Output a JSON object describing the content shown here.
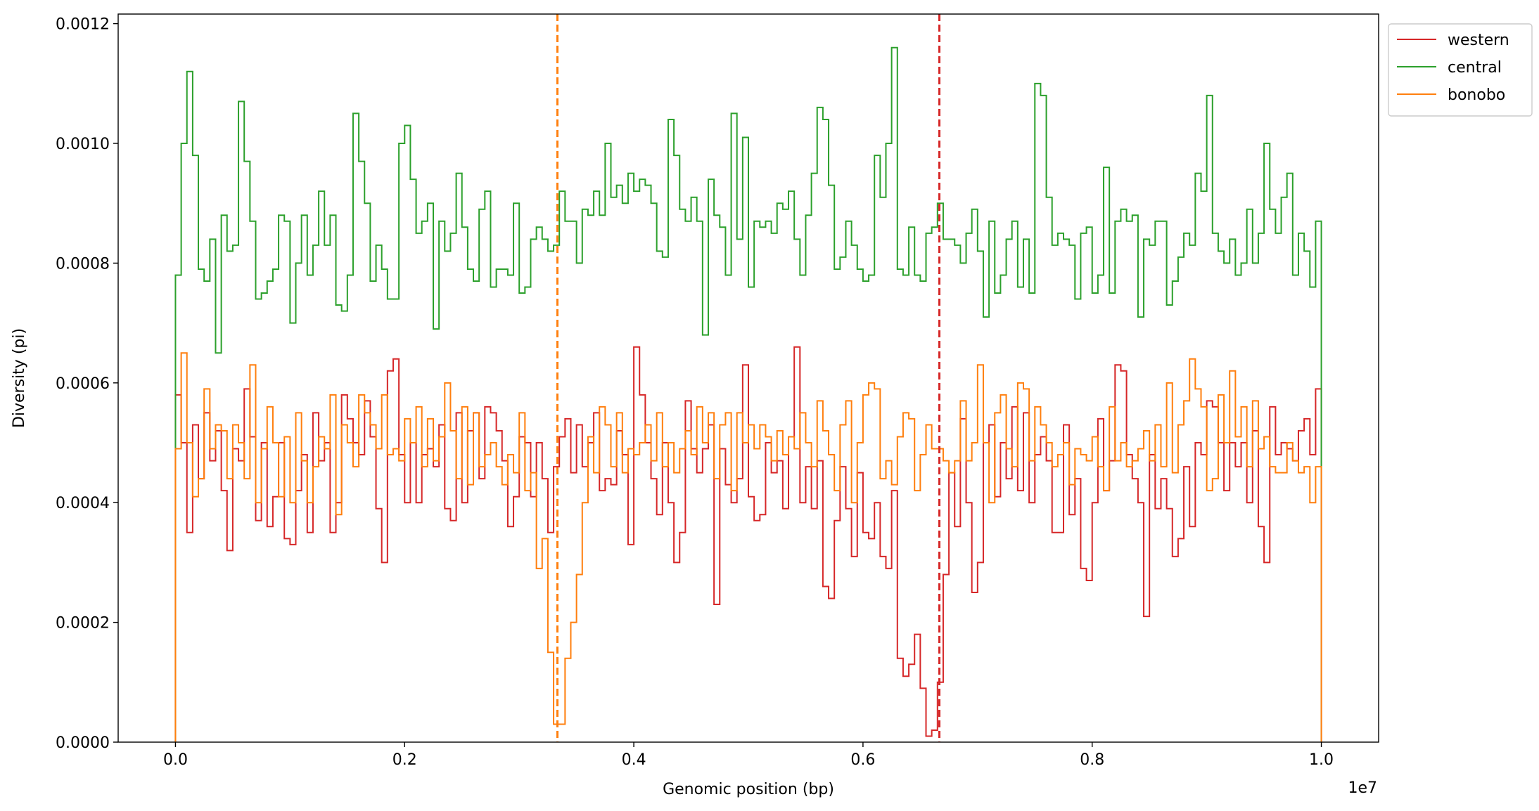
{
  "chart_data": {
    "type": "step-histogram",
    "xlabel": "Genomic position (bp)",
    "ylabel": "Diversity (pi)",
    "x_offset_label": "1e7",
    "xlim": [
      -500000,
      10500000
    ],
    "ylim": [
      0,
      0.001216
    ],
    "xticks": [
      {
        "value": 0,
        "label": "0.0"
      },
      {
        "value": 2000000,
        "label": "0.2"
      },
      {
        "value": 4000000,
        "label": "0.4"
      },
      {
        "value": 6000000,
        "label": "0.6"
      },
      {
        "value": 8000000,
        "label": "0.8"
      },
      {
        "value": 10000000,
        "label": "1.0"
      }
    ],
    "yticks": [
      {
        "value": 0,
        "label": "0.0000"
      },
      {
        "value": 0.0002,
        "label": "0.0002"
      },
      {
        "value": 0.0004,
        "label": "0.0004"
      },
      {
        "value": 0.0006,
        "label": "0.0006"
      },
      {
        "value": 0.0008,
        "label": "0.0008"
      },
      {
        "value": 0.001,
        "label": "0.0010"
      },
      {
        "value": 0.0012,
        "label": "0.0012"
      }
    ],
    "legend": "upper right outside",
    "vlines": [
      {
        "x": 3333333,
        "color": "#ff7f0e"
      },
      {
        "x": 6666667,
        "color": "#d62728"
      }
    ],
    "bins": [
      0,
      50000,
      100000,
      150000,
      200000,
      250000,
      300000,
      350000,
      400000,
      450000,
      500000,
      550000,
      600000,
      650000,
      700000,
      750000,
      800000,
      850000,
      900000,
      950000,
      1000000,
      1050000,
      1100000,
      1150000,
      1200000,
      1250000,
      1300000,
      1350000,
      1400000,
      1450000,
      1500000,
      1550000,
      1600000,
      1650000,
      1700000,
      1750000,
      1800000,
      1850000,
      1900000,
      1950000,
      2000000,
      2050000,
      2100000,
      2150000,
      2200000,
      2250000,
      2300000,
      2350000,
      2400000,
      2450000,
      2500000,
      2550000,
      2600000,
      2650000,
      2700000,
      2750000,
      2800000,
      2850000,
      2900000,
      2950000,
      3000000,
      3050000,
      3100000,
      3150000,
      3200000,
      3250000,
      3300000,
      3350000,
      3400000,
      3450000,
      3500000,
      3550000,
      3600000,
      3650000,
      3700000,
      3750000,
      3800000,
      3850000,
      3900000,
      3950000,
      4000000,
      4050000,
      4100000,
      4150000,
      4200000,
      4250000,
      4300000,
      4350000,
      4400000,
      4450000,
      4500000,
      4550000,
      4600000,
      4650000,
      4700000,
      4750000,
      4800000,
      4850000,
      4900000,
      4950000,
      5000000,
      5050000,
      5100000,
      5150000,
      5200000,
      5250000,
      5300000,
      5350000,
      5400000,
      5450000,
      5500000,
      5550000,
      5600000,
      5650000,
      5700000,
      5750000,
      5800000,
      5850000,
      5900000,
      5950000,
      6000000,
      6050000,
      6100000,
      6150000,
      6200000,
      6250000,
      6300000,
      6350000,
      6400000,
      6450000,
      6500000,
      6550000,
      6600000,
      6650000,
      6700000,
      6750000,
      6800000,
      6850000,
      6900000,
      6950000,
      7000000,
      7050000,
      7100000,
      7150000,
      7200000,
      7250000,
      7300000,
      7350000,
      7400000,
      7450000,
      7500000,
      7550000,
      7600000,
      7650000,
      7700000,
      7750000,
      7800000,
      7850000,
      7900000,
      7950000,
      8000000,
      8050000,
      8100000,
      8150000,
      8200000,
      8250000,
      8300000,
      8350000,
      8400000,
      8450000,
      8500000,
      8550000,
      8600000,
      8650000,
      8700000,
      8750000,
      8800000,
      8850000,
      8900000,
      8950000,
      9000000,
      9050000,
      9100000,
      9150000,
      9200000,
      9250000,
      9300000,
      9350000,
      9400000,
      9450000,
      9500000,
      9550000,
      9600000,
      9650000,
      9700000,
      9750000,
      9800000,
      9850000,
      9900000,
      9950000,
      10000000
    ],
    "series": [
      {
        "name": "western",
        "color": "#d62728",
        "values": [
          0.00058,
          0.0005,
          0.00035,
          0.00053,
          0.00044,
          0.00055,
          0.00047,
          0.00052,
          0.00042,
          0.00032,
          0.00049,
          0.00047,
          0.00059,
          0.00051,
          0.00037,
          0.0005,
          0.00036,
          0.00041,
          0.0005,
          0.00034,
          0.00033,
          0.00042,
          0.00048,
          0.00035,
          0.00055,
          0.00047,
          0.0005,
          0.00035,
          0.0004,
          0.00058,
          0.00054,
          0.0005,
          0.00048,
          0.00057,
          0.00051,
          0.00039,
          0.0003,
          0.00062,
          0.00064,
          0.00048,
          0.0004,
          0.0005,
          0.0004,
          0.00048,
          0.00049,
          0.00046,
          0.00053,
          0.00039,
          0.00037,
          0.00055,
          0.0004,
          0.00052,
          0.00055,
          0.00044,
          0.00056,
          0.00055,
          0.00052,
          0.00047,
          0.00036,
          0.00041,
          0.00051,
          0.0005,
          0.00041,
          0.0005,
          0.00044,
          0.00035,
          0.00046,
          0.00051,
          0.00054,
          0.00045,
          0.00053,
          0.00046,
          0.0005,
          0.00055,
          0.00042,
          0.00044,
          0.00043,
          0.00052,
          0.00048,
          0.00033,
          0.00066,
          0.00058,
          0.0005,
          0.00044,
          0.00038,
          0.0005,
          0.0004,
          0.0003,
          0.00035,
          0.00057,
          0.00049,
          0.00045,
          0.00049,
          0.00053,
          0.00023,
          0.00049,
          0.00043,
          0.0004,
          0.00044,
          0.00063,
          0.00041,
          0.00037,
          0.00038,
          0.0005,
          0.00045,
          0.00047,
          0.00039,
          0.00051,
          0.00066,
          0.0004,
          0.00046,
          0.00039,
          0.00047,
          0.00026,
          0.00024,
          0.00037,
          0.00046,
          0.00039,
          0.00031,
          0.00045,
          0.00035,
          0.00034,
          0.0004,
          0.00031,
          0.00029,
          0.00042,
          0.00014,
          0.00011,
          0.00013,
          0.00018,
          9e-05,
          1e-05,
          2e-05,
          0.0001,
          0.00028,
          0.00045,
          0.00036,
          0.00054,
          0.0004,
          0.00025,
          0.0003,
          0.0005,
          0.00053,
          0.00041,
          0.0005,
          0.00044,
          0.00056,
          0.00042,
          0.00055,
          0.0004,
          0.00048,
          0.00051,
          0.00047,
          0.00035,
          0.00035,
          0.00053,
          0.00038,
          0.00044,
          0.00029,
          0.00027,
          0.0004,
          0.00054,
          0.00042,
          0.00047,
          0.00063,
          0.00062,
          0.00048,
          0.00044,
          0.0004,
          0.00021,
          0.00048,
          0.00039,
          0.00044,
          0.00039,
          0.00031,
          0.00034,
          0.00046,
          0.00036,
          0.0005,
          0.00048,
          0.00057,
          0.00056,
          0.0005,
          0.00042,
          0.0005,
          0.00046,
          0.0005,
          0.0004,
          0.00052,
          0.00036,
          0.0003,
          0.00056,
          0.00048,
          0.0005,
          0.00049,
          0.00047,
          0.00052,
          0.00054,
          0.00048,
          0.00059
        ]
      },
      {
        "name": "central",
        "color": "#2ca02c",
        "values": [
          0.00078,
          0.001,
          0.00112,
          0.00098,
          0.00079,
          0.00077,
          0.00084,
          0.00065,
          0.00088,
          0.00082,
          0.00083,
          0.00107,
          0.00097,
          0.00087,
          0.00074,
          0.00075,
          0.00077,
          0.00079,
          0.00088,
          0.00087,
          0.0007,
          0.0008,
          0.00088,
          0.00078,
          0.00083,
          0.00092,
          0.00083,
          0.00088,
          0.00073,
          0.00072,
          0.00078,
          0.00105,
          0.00097,
          0.0009,
          0.00077,
          0.00083,
          0.00079,
          0.00074,
          0.00074,
          0.001,
          0.00103,
          0.00094,
          0.00085,
          0.00087,
          0.0009,
          0.00069,
          0.00087,
          0.00082,
          0.00085,
          0.00095,
          0.00086,
          0.00079,
          0.00077,
          0.00089,
          0.00092,
          0.00076,
          0.00079,
          0.00079,
          0.00078,
          0.0009,
          0.00075,
          0.00076,
          0.00084,
          0.00086,
          0.00084,
          0.00082,
          0.00083,
          0.00092,
          0.00087,
          0.00087,
          0.0008,
          0.00089,
          0.00088,
          0.00092,
          0.00088,
          0.001,
          0.00091,
          0.00093,
          0.0009,
          0.00095,
          0.00092,
          0.00094,
          0.00093,
          0.0009,
          0.00082,
          0.00081,
          0.00104,
          0.00098,
          0.00089,
          0.00087,
          0.00091,
          0.00087,
          0.00068,
          0.00094,
          0.00088,
          0.00086,
          0.00078,
          0.00105,
          0.00084,
          0.00101,
          0.00076,
          0.00087,
          0.00086,
          0.00087,
          0.00085,
          0.0009,
          0.00089,
          0.00092,
          0.00084,
          0.00078,
          0.00088,
          0.00095,
          0.00106,
          0.00104,
          0.00093,
          0.00079,
          0.00081,
          0.00087,
          0.00083,
          0.00079,
          0.00077,
          0.00078,
          0.00098,
          0.00091,
          0.001,
          0.00116,
          0.00079,
          0.00078,
          0.00086,
          0.00078,
          0.00077,
          0.00085,
          0.00086,
          0.0009,
          0.00084,
          0.00084,
          0.00083,
          0.0008,
          0.00085,
          0.00089,
          0.00082,
          0.00071,
          0.00087,
          0.00075,
          0.00078,
          0.00084,
          0.00087,
          0.00076,
          0.00084,
          0.00075,
          0.0011,
          0.00108,
          0.00091,
          0.00083,
          0.00085,
          0.00084,
          0.00083,
          0.00074,
          0.00085,
          0.00086,
          0.00075,
          0.00078,
          0.00096,
          0.00075,
          0.00087,
          0.00089,
          0.00087,
          0.00088,
          0.00071,
          0.00084,
          0.00083,
          0.00087,
          0.00087,
          0.00073,
          0.00077,
          0.00081,
          0.00085,
          0.00083,
          0.00095,
          0.00092,
          0.00108,
          0.00085,
          0.00082,
          0.0008,
          0.00084,
          0.00078,
          0.0008,
          0.00089,
          0.0008,
          0.00085,
          0.001,
          0.00089,
          0.00085,
          0.00091,
          0.00095,
          0.00078,
          0.00085,
          0.00082,
          0.00076,
          0.00087
        ]
      },
      {
        "name": "bonobo",
        "color": "#ff7f0e",
        "values": [
          0.00049,
          0.00065,
          0.0005,
          0.00041,
          0.00044,
          0.00059,
          0.00049,
          0.00053,
          0.00052,
          0.00044,
          0.00053,
          0.0005,
          0.00044,
          0.00063,
          0.0004,
          0.00049,
          0.00056,
          0.0005,
          0.00041,
          0.00051,
          0.0004,
          0.00055,
          0.00047,
          0.0004,
          0.00046,
          0.00051,
          0.00049,
          0.00058,
          0.00038,
          0.00053,
          0.0005,
          0.00046,
          0.00058,
          0.00055,
          0.00053,
          0.00049,
          0.00058,
          0.00048,
          0.00049,
          0.00047,
          0.00054,
          0.0005,
          0.00056,
          0.00046,
          0.00054,
          0.00047,
          0.00051,
          0.0006,
          0.00052,
          0.00044,
          0.00056,
          0.00043,
          0.00055,
          0.00046,
          0.00048,
          0.0005,
          0.00046,
          0.00043,
          0.00048,
          0.00045,
          0.00055,
          0.00042,
          0.00045,
          0.00029,
          0.00034,
          0.00015,
          3e-05,
          3e-05,
          0.00014,
          0.0002,
          0.00028,
          0.0004,
          0.00051,
          0.00045,
          0.00056,
          0.00053,
          0.00046,
          0.00055,
          0.00045,
          0.00049,
          0.00048,
          0.0005,
          0.00053,
          0.00047,
          0.00055,
          0.00046,
          0.0005,
          0.00045,
          0.00049,
          0.00052,
          0.00048,
          0.00056,
          0.0005,
          0.00055,
          0.00044,
          0.00053,
          0.00055,
          0.00042,
          0.00055,
          0.0005,
          0.00053,
          0.00049,
          0.00053,
          0.00051,
          0.00047,
          0.00052,
          0.00048,
          0.00051,
          0.00049,
          0.00055,
          0.0005,
          0.00046,
          0.00057,
          0.00052,
          0.00048,
          0.00042,
          0.00053,
          0.00057,
          0.0004,
          0.0005,
          0.00058,
          0.0006,
          0.00059,
          0.00044,
          0.00047,
          0.00043,
          0.00051,
          0.00055,
          0.00054,
          0.00042,
          0.00048,
          0.00053,
          0.00049,
          0.00049,
          0.00047,
          0.00045,
          0.00047,
          0.00057,
          0.00047,
          0.0005,
          0.00063,
          0.0005,
          0.0004,
          0.00055,
          0.00058,
          0.00049,
          0.00046,
          0.0006,
          0.00059,
          0.00047,
          0.00056,
          0.00053,
          0.0005,
          0.00046,
          0.00048,
          0.0005,
          0.00043,
          0.00049,
          0.00048,
          0.00047,
          0.00051,
          0.00046,
          0.00042,
          0.00056,
          0.00047,
          0.0005,
          0.00046,
          0.00047,
          0.00049,
          0.00052,
          0.00047,
          0.00053,
          0.00046,
          0.0006,
          0.00045,
          0.00053,
          0.00057,
          0.00064,
          0.00059,
          0.00056,
          0.00042,
          0.00044,
          0.00058,
          0.0005,
          0.00062,
          0.00051,
          0.00056,
          0.00046,
          0.00057,
          0.00049,
          0.00051,
          0.00046,
          0.00045,
          0.00045,
          0.0005,
          0.00047,
          0.00045,
          0.00046,
          0.0004,
          0.00046
        ]
      }
    ]
  }
}
